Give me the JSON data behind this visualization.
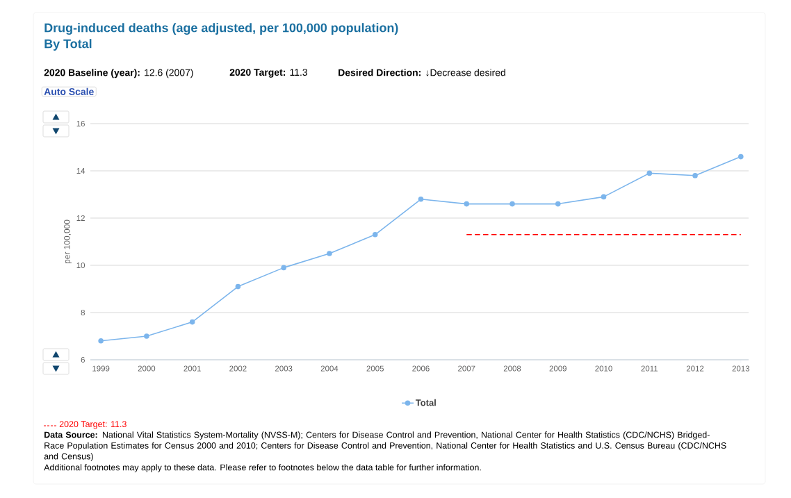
{
  "chart_data": {
    "type": "line",
    "title": "Drug-induced deaths (age adjusted, per 100,000 population)",
    "subtitle": "By Total",
    "ylabel": "per 100,000",
    "x": [
      1999,
      2000,
      2001,
      2002,
      2003,
      2004,
      2005,
      2006,
      2007,
      2008,
      2009,
      2010,
      2011,
      2012,
      2013
    ],
    "series": [
      {
        "name": "Total",
        "color": "#7cb5ec",
        "marker": "circle",
        "line_style": "solid",
        "values": [
          6.8,
          7.0,
          7.6,
          9.1,
          9.9,
          10.5,
          11.3,
          12.8,
          12.6,
          12.6,
          12.6,
          12.9,
          13.9,
          13.8,
          14.6
        ]
      },
      {
        "name": "2020 Target: 11.3",
        "color": "#ff0000",
        "marker": "none",
        "line_style": "dashed",
        "x": [
          2007,
          2013
        ],
        "values": [
          11.3,
          11.3
        ]
      }
    ],
    "xlim": [
      1998.77,
      2013.17
    ],
    "ylim": [
      6,
      16
    ],
    "xticks": [
      1999,
      2000,
      2001,
      2002,
      2003,
      2004,
      2005,
      2006,
      2007,
      2008,
      2009,
      2010,
      2011,
      2012,
      2013
    ],
    "yticks": [
      6,
      8,
      10,
      12,
      14,
      16
    ],
    "grid": "y",
    "legend": "bottom",
    "annotations": [
      "**2020 Baseline (year):** 12.6 (2007)",
      "**2020 Target:** 11.3",
      "**Desired Direction:** ↓Decrease desired",
      "Auto Scale",
      "**Data Source:** National Vital Statistics System-Mortality (NVSS-M); Centers for Disease Control and Prevention, National Center for Health Statistics (CDC/NCHS) Bridged-Race Population Estimates for Census 2000 and 2010; Centers for Disease Control and Prevention, National Center for Health Statistics and U.S. Census Bureau (CDC/NCHS and Census)",
      "Additional footnotes may apply to these data. Please refer to footnotes below the data table for further information."
    ]
  }
}
